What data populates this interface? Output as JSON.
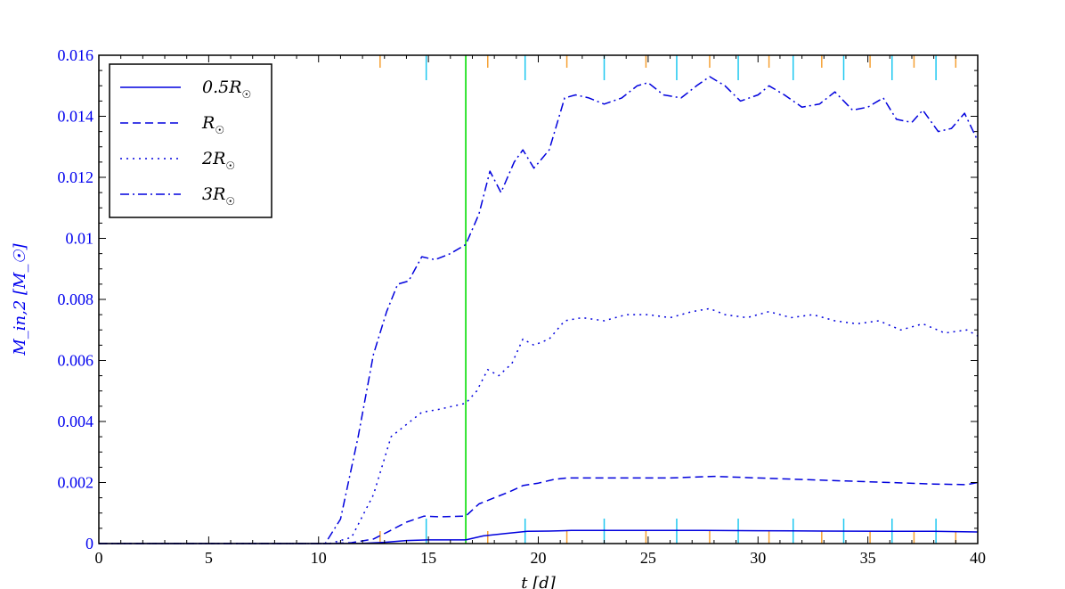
{
  "chart_data": {
    "type": "line",
    "title": "",
    "xlabel": "t  [d]",
    "ylabel": "M_in,2  [M_☉]",
    "xlim": [
      0,
      40
    ],
    "ylim": [
      0,
      0.016
    ],
    "x_ticks": [
      0,
      5,
      10,
      15,
      20,
      25,
      30,
      35,
      40
    ],
    "x_tick_labels": [
      "0",
      "5",
      "10",
      "15",
      "20",
      "25",
      "30",
      "35",
      "40"
    ],
    "y_ticks": [
      0,
      0.002,
      0.004,
      0.006,
      0.008,
      0.01,
      0.012,
      0.014,
      0.016
    ],
    "y_tick_labels": [
      "0",
      "0.002",
      "0.004",
      "0.006",
      "0.008",
      "0.01",
      "0.012",
      "0.014",
      "0.016"
    ],
    "grid": false,
    "legend_position": "top-left",
    "vline": {
      "x": 16.7,
      "color": "#00dd00"
    },
    "orange_markers_x": [
      12.8,
      17.7,
      21.3,
      24.9,
      27.8,
      30.5,
      32.9,
      35.1,
      37.1,
      39.0
    ],
    "cyan_markers_x": [
      14.9,
      19.4,
      23.0,
      26.3,
      29.1,
      31.6,
      33.9,
      36.1,
      38.1
    ],
    "marker_colors": {
      "orange": "#f5a033",
      "cyan": "#1ec8f0"
    },
    "line_color": "#0000dd",
    "series": [
      {
        "name": "0.5R_☉",
        "legend_main": "0.5R",
        "dash": "solid",
        "x": [
          0,
          10.5,
          12,
          13,
          14,
          15,
          16.7,
          17.5,
          18.5,
          19.5,
          20.5,
          21.5,
          23,
          25,
          27.5,
          30,
          33,
          36,
          38,
          40
        ],
        "y": [
          0,
          0,
          1e-05,
          4e-05,
          0.0001,
          0.00012,
          0.00012,
          0.00025,
          0.00033,
          0.0004,
          0.00041,
          0.00043,
          0.00043,
          0.00043,
          0.00043,
          0.00042,
          0.00041,
          0.0004,
          0.0004,
          0.00038
        ]
      },
      {
        "name": "R_☉",
        "legend_main": "R",
        "dash": "9,5",
        "x": [
          0,
          10.5,
          11.5,
          12.5,
          13.2,
          14,
          14.8,
          15.5,
          16.7,
          17.3,
          18,
          18.7,
          19.3,
          20,
          20.7,
          21.3,
          22.5,
          24,
          26,
          28,
          30,
          32,
          34,
          36,
          38,
          39.5,
          40
        ],
        "y": [
          0,
          0,
          3e-05,
          0.00015,
          0.0004,
          0.0007,
          0.0009,
          0.00088,
          0.0009,
          0.0013,
          0.0015,
          0.0017,
          0.0019,
          0.00198,
          0.0021,
          0.00215,
          0.00215,
          0.00215,
          0.00215,
          0.0022,
          0.00215,
          0.0021,
          0.00205,
          0.002,
          0.00195,
          0.00193,
          0.002
        ]
      },
      {
        "name": "2R_☉",
        "legend_main": "2R",
        "dash": "2,5",
        "x": [
          0,
          10.5,
          11.5,
          12.5,
          13.3,
          14,
          14.7,
          15.5,
          16.7,
          17.2,
          17.7,
          18.2,
          18.8,
          19.3,
          19.8,
          20.5,
          21.2,
          22,
          23,
          24,
          25,
          26,
          27,
          27.8,
          28.5,
          29.5,
          30.5,
          31.5,
          32.5,
          33.5,
          34.5,
          35.5,
          36.5,
          37.5,
          38.5,
          39.5,
          40
        ],
        "y": [
          0,
          0,
          0.0002,
          0.0016,
          0.0035,
          0.0039,
          0.0043,
          0.0044,
          0.0046,
          0.005,
          0.0057,
          0.0055,
          0.0059,
          0.0067,
          0.0065,
          0.0067,
          0.0073,
          0.0074,
          0.0073,
          0.0075,
          0.0075,
          0.0074,
          0.0076,
          0.0077,
          0.0075,
          0.0074,
          0.0076,
          0.0074,
          0.0075,
          0.0073,
          0.0072,
          0.0073,
          0.007,
          0.0072,
          0.0069,
          0.007,
          0.0068
        ]
      },
      {
        "name": "3R_☉",
        "legend_main": "3R",
        "dash": "10,4,2,4",
        "x": [
          0,
          10.3,
          11,
          11.8,
          12.5,
          13.1,
          13.6,
          14.1,
          14.7,
          15.3,
          16,
          16.7,
          17.3,
          17.8,
          18.3,
          18.9,
          19.3,
          19.8,
          20.5,
          21.2,
          21.7,
          22.3,
          23,
          23.8,
          24.5,
          25,
          25.7,
          26.5,
          27.2,
          27.8,
          28.5,
          29.2,
          30,
          30.5,
          31.2,
          32,
          32.8,
          33.5,
          34.3,
          35,
          35.7,
          36.3,
          37,
          37.5,
          38.2,
          38.8,
          39.4,
          40
        ],
        "y": [
          0,
          0,
          0.0008,
          0.0035,
          0.0062,
          0.0076,
          0.0085,
          0.0086,
          0.0094,
          0.0093,
          0.0095,
          0.0098,
          0.0108,
          0.0122,
          0.0115,
          0.0125,
          0.0129,
          0.0123,
          0.0129,
          0.0146,
          0.0147,
          0.0146,
          0.0144,
          0.0146,
          0.015,
          0.0151,
          0.0147,
          0.0146,
          0.015,
          0.0153,
          0.015,
          0.0145,
          0.0147,
          0.015,
          0.0147,
          0.0143,
          0.0144,
          0.0148,
          0.0142,
          0.0143,
          0.0146,
          0.0139,
          0.0138,
          0.0142,
          0.0135,
          0.0136,
          0.0141,
          0.0132
        ]
      }
    ]
  }
}
